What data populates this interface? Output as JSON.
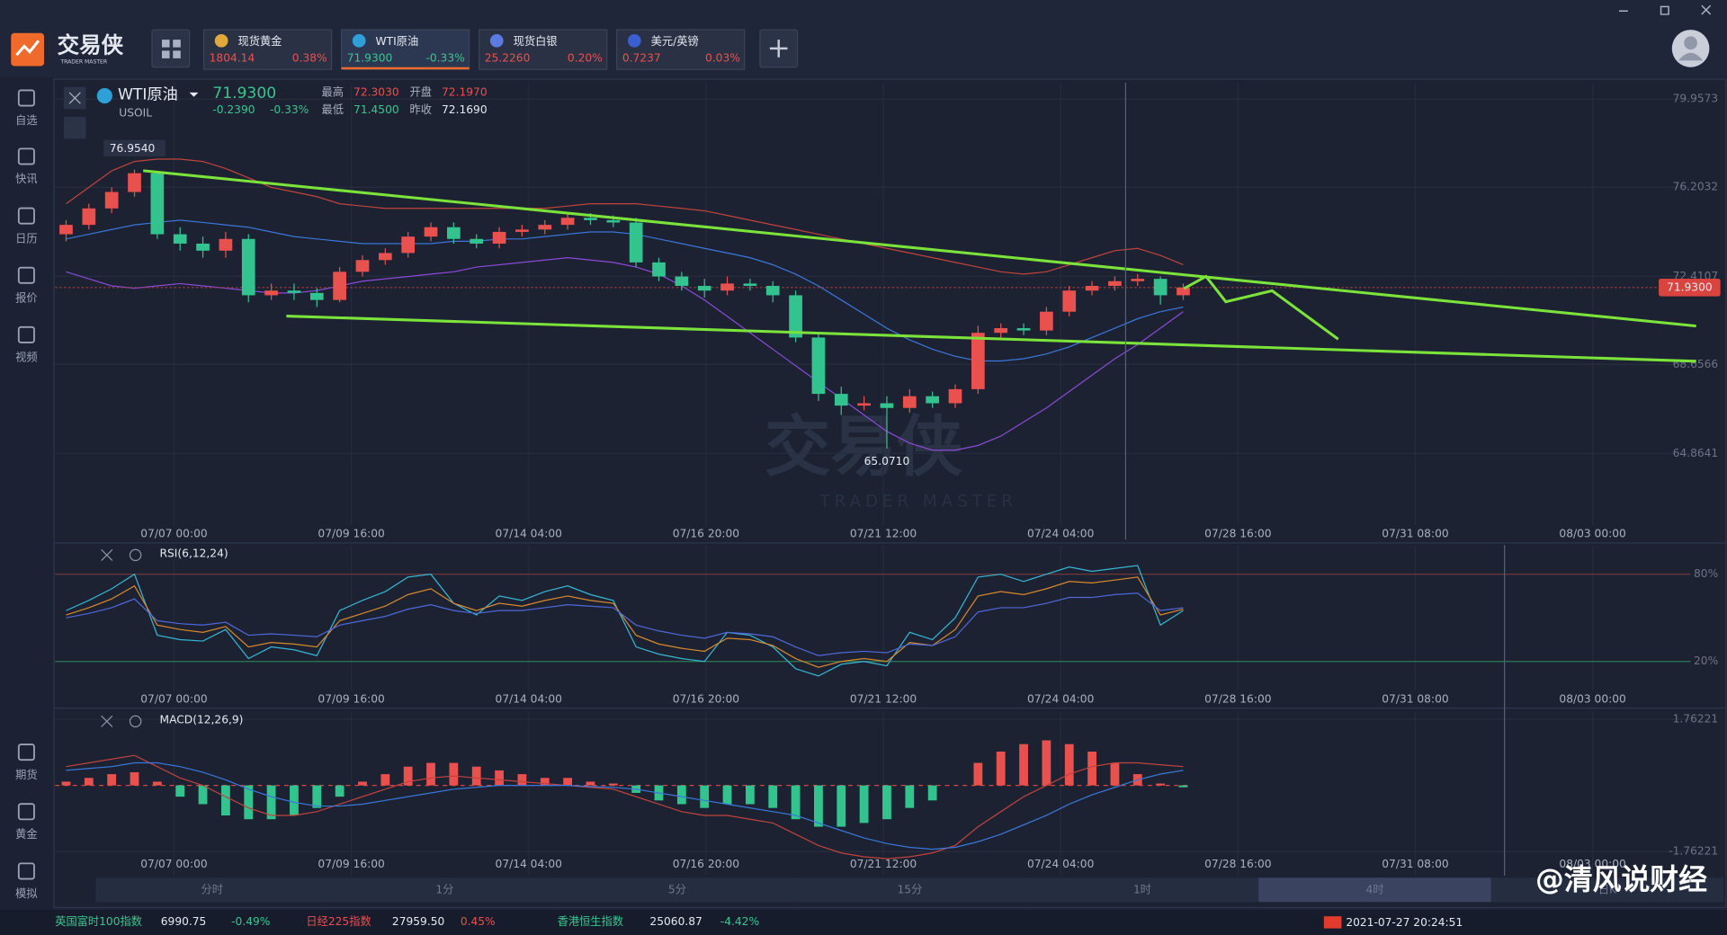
{
  "header": {
    "logo": "交易侠",
    "logo_sub": "TRADER MASTER",
    "tickers": [
      {
        "name": "现货黄金",
        "price": "1804.14",
        "change": "0.38%"
      },
      {
        "name": "WTI原油",
        "price": "71.9300",
        "change": "-0.33%"
      },
      {
        "name": "现货白银",
        "price": "25.2260",
        "change": "0.20%"
      },
      {
        "name": "美元/英镑",
        "price": "0.7237",
        "change": "0.03%"
      }
    ]
  },
  "sidebar": [
    "自选",
    "快讯",
    "日历",
    "报价",
    "视频",
    "期货",
    "黄金",
    "模拟"
  ],
  "symbol": {
    "name": "WTI原油",
    "code": "USOIL",
    "price": "71.9300",
    "change": "-0.2390",
    "change_pct": "-0.33%",
    "high_label": "最高",
    "high": "72.3030",
    "open_label": "开盘",
    "open": "72.1970",
    "low_label": "最低",
    "low": "71.4500",
    "prev_label": "昨收",
    "prev": "72.1690"
  },
  "chart_data": [
    {
      "type": "candlestick",
      "colors": {
        "up": "#e9514f",
        "down": "#32c38f"
      },
      "open": [
        74.2,
        74.6,
        75.3,
        76.0,
        76.8,
        74.2,
        73.8,
        73.5,
        74.0,
        71.6,
        71.8,
        71.7,
        71.4,
        72.6,
        73.1,
        73.4,
        74.1,
        74.5,
        74.0,
        73.8,
        74.3,
        74.4,
        74.6,
        74.9,
        74.8,
        74.7,
        73.0,
        72.4,
        72.0,
        71.8,
        72.1,
        72.0,
        71.6,
        69.8,
        67.4,
        66.9,
        67.0,
        66.8,
        67.3,
        67.0,
        67.6,
        70.0,
        70.2,
        70.1,
        70.9,
        71.8,
        72.0,
        72.2,
        72.3,
        71.6
      ],
      "high": [
        74.8,
        75.5,
        76.2,
        76.954,
        76.9,
        74.5,
        74.1,
        74.3,
        74.2,
        72.1,
        72.1,
        71.9,
        72.8,
        73.3,
        73.6,
        74.3,
        74.7,
        74.7,
        74.2,
        74.5,
        74.6,
        74.8,
        75.1,
        75.1,
        75.0,
        74.9,
        73.2,
        72.6,
        72.3,
        72.4,
        72.3,
        72.2,
        71.8,
        70.0,
        67.7,
        67.3,
        67.3,
        67.6,
        67.5,
        67.8,
        70.3,
        70.4,
        70.4,
        71.1,
        72.0,
        72.2,
        72.4,
        72.5,
        72.4,
        72.1
      ],
      "low": [
        73.9,
        74.4,
        75.1,
        75.8,
        74.0,
        73.5,
        73.2,
        73.2,
        71.3,
        71.4,
        71.4,
        71.1,
        71.3,
        72.4,
        72.9,
        73.2,
        73.9,
        73.8,
        73.6,
        73.6,
        74.1,
        74.2,
        74.4,
        74.6,
        74.5,
        72.8,
        72.2,
        71.8,
        71.5,
        71.6,
        71.8,
        71.3,
        69.6,
        67.1,
        66.5,
        66.7,
        65.071,
        66.6,
        66.8,
        66.8,
        67.4,
        69.8,
        69.9,
        69.9,
        70.7,
        71.6,
        71.8,
        72.0,
        71.2,
        71.4
      ],
      "close": [
        74.6,
        75.3,
        76.0,
        76.8,
        74.2,
        73.8,
        73.5,
        74.0,
        71.6,
        71.8,
        71.7,
        71.4,
        72.6,
        73.1,
        73.4,
        74.1,
        74.5,
        74.0,
        73.8,
        74.3,
        74.4,
        74.6,
        74.9,
        74.8,
        74.7,
        73.0,
        72.4,
        72.0,
        71.8,
        72.1,
        72.0,
        71.6,
        69.8,
        67.4,
        66.9,
        67.0,
        66.8,
        67.3,
        67.0,
        67.6,
        70.0,
        70.2,
        70.1,
        70.9,
        71.8,
        72.0,
        72.2,
        72.3,
        71.6,
        71.93
      ],
      "series": [
        {
          "color": "#c0433d",
          "values": [
            75.5,
            76.2,
            76.9,
            77.3,
            77.4,
            77.4,
            77.3,
            77.0,
            76.6,
            76.2,
            76.0,
            75.8,
            75.5,
            75.4,
            75.3,
            75.3,
            75.3,
            75.3,
            75.3,
            75.3,
            75.3,
            75.3,
            75.4,
            75.5,
            75.5,
            75.5,
            75.4,
            75.3,
            75.2,
            75.0,
            74.8,
            74.6,
            74.4,
            74.2,
            74.0,
            73.8,
            73.6,
            73.4,
            73.2,
            73.0,
            72.8,
            72.6,
            72.5,
            72.6,
            72.9,
            73.2,
            73.5,
            73.6,
            73.3,
            72.9
          ]
        },
        {
          "color": "#3a77d9",
          "values": [
            74.0,
            74.2,
            74.4,
            74.6,
            74.7,
            74.8,
            74.7,
            74.6,
            74.5,
            74.3,
            74.1,
            74.0,
            73.9,
            73.8,
            73.8,
            73.8,
            73.8,
            73.9,
            73.9,
            74.0,
            74.0,
            74.1,
            74.2,
            74.3,
            74.3,
            74.2,
            74.0,
            73.8,
            73.6,
            73.4,
            73.2,
            72.9,
            72.5,
            72.0,
            71.4,
            70.8,
            70.2,
            69.7,
            69.3,
            69.0,
            68.8,
            68.8,
            68.9,
            69.1,
            69.4,
            69.8,
            70.2,
            70.6,
            70.9,
            71.1
          ]
        },
        {
          "color": "#8a4ad6",
          "values": [
            72.6,
            72.3,
            72.0,
            71.9,
            72.0,
            72.1,
            72.0,
            71.9,
            71.8,
            71.7,
            71.7,
            71.8,
            72.0,
            72.2,
            72.3,
            72.4,
            72.5,
            72.6,
            72.8,
            72.9,
            73.0,
            73.1,
            73.2,
            73.1,
            73.0,
            72.8,
            72.5,
            72.0,
            71.4,
            70.7,
            70.0,
            69.3,
            68.6,
            67.9,
            67.2,
            66.5,
            65.8,
            65.3,
            65.0,
            65.0,
            65.2,
            65.6,
            66.2,
            66.8,
            67.5,
            68.2,
            68.9,
            69.5,
            70.2,
            70.9
          ]
        }
      ],
      "ylim": [
        61.8,
        80.66
      ],
      "yticks": [
        79.9573,
        76.2032,
        72.4107,
        68.6566,
        64.8641
      ],
      "last_price": {
        "value": 71.93,
        "label": "71.9300"
      },
      "max_label": "76.9540",
      "min_label": "65.0710",
      "time_labels": [
        "07/07 00:00",
        "07/09 16:00",
        "07/14 04:00",
        "07/16 20:00",
        "07/21 12:00",
        "07/24 04:00",
        "07/28 16:00",
        "07/31 08:00",
        "08/03 00:00"
      ]
    },
    {
      "type": "line",
      "title": "RSI(6,12,24)",
      "series": [
        {
          "color": "#36b6d4",
          "values": [
            55,
            62,
            70,
            80,
            38,
            35,
            34,
            42,
            22,
            30,
            28,
            24,
            55,
            62,
            68,
            78,
            80,
            60,
            52,
            65,
            62,
            68,
            72,
            66,
            62,
            30,
            25,
            22,
            20,
            40,
            38,
            30,
            15,
            10,
            18,
            20,
            17,
            40,
            35,
            50,
            78,
            80,
            75,
            80,
            85,
            82,
            84,
            86,
            45,
            55
          ]
        },
        {
          "color": "#d8882c",
          "values": [
            52,
            57,
            63,
            72,
            45,
            42,
            40,
            44,
            30,
            33,
            32,
            30,
            48,
            53,
            58,
            66,
            70,
            60,
            55,
            60,
            58,
            62,
            65,
            62,
            60,
            38,
            32,
            29,
            27,
            36,
            35,
            31,
            22,
            16,
            20,
            22,
            20,
            33,
            31,
            42,
            65,
            68,
            66,
            70,
            75,
            74,
            76,
            78,
            52,
            56
          ]
        },
        {
          "color": "#4f68d8",
          "values": [
            50,
            53,
            57,
            63,
            48,
            46,
            45,
            47,
            38,
            39,
            38,
            37,
            45,
            48,
            51,
            56,
            59,
            55,
            53,
            55,
            55,
            57,
            59,
            58,
            57,
            45,
            41,
            38,
            36,
            40,
            39,
            37,
            30,
            24,
            26,
            27,
            26,
            32,
            31,
            37,
            54,
            57,
            57,
            60,
            64,
            64,
            66,
            67,
            55,
            57
          ]
        }
      ],
      "ylim": [
        0,
        100
      ],
      "yticks": [
        {
          "value": 80,
          "label": "80%"
        },
        {
          "value": 20,
          "label": "20%"
        }
      ]
    },
    {
      "type": "macd",
      "title": "MACD(12,26,9)",
      "colors": {
        "up": "#e9514f",
        "down": "#32c38f"
      },
      "histogram": [
        0.1,
        0.2,
        0.3,
        0.35,
        0.1,
        -0.3,
        -0.5,
        -0.8,
        -0.9,
        -0.9,
        -0.8,
        -0.6,
        -0.3,
        0.1,
        0.3,
        0.5,
        0.6,
        0.6,
        0.5,
        0.4,
        0.3,
        0.2,
        0.2,
        0.1,
        0.05,
        -0.2,
        -0.4,
        -0.5,
        -0.6,
        -0.5,
        -0.5,
        -0.6,
        -0.9,
        -1.1,
        -1.1,
        -1.0,
        -0.9,
        -0.6,
        -0.4,
        0.0,
        0.6,
        0.9,
        1.1,
        1.2,
        1.1,
        0.9,
        0.6,
        0.3,
        0.05,
        -0.05
      ],
      "series": [
        {
          "color": "#c0433d",
          "values": [
            0.5,
            0.6,
            0.7,
            0.8,
            0.5,
            0.2,
            0.0,
            -0.3,
            -0.6,
            -0.8,
            -0.8,
            -0.7,
            -0.5,
            -0.3,
            -0.1,
            0.1,
            0.2,
            0.25,
            0.2,
            0.15,
            0.1,
            0.05,
            0.0,
            -0.05,
            -0.1,
            -0.3,
            -0.5,
            -0.7,
            -0.8,
            -0.8,
            -0.9,
            -1.0,
            -1.3,
            -1.6,
            -1.8,
            -1.9,
            -1.95,
            -1.9,
            -1.8,
            -1.6,
            -1.1,
            -0.7,
            -0.3,
            0.0,
            0.3,
            0.5,
            0.6,
            0.6,
            0.55,
            0.5
          ]
        },
        {
          "color": "#3a77d9",
          "values": [
            0.4,
            0.45,
            0.5,
            0.6,
            0.6,
            0.5,
            0.35,
            0.15,
            -0.1,
            -0.3,
            -0.45,
            -0.55,
            -0.55,
            -0.5,
            -0.4,
            -0.3,
            -0.2,
            -0.1,
            -0.05,
            0.0,
            0.0,
            0.0,
            0.0,
            -0.03,
            -0.05,
            -0.1,
            -0.2,
            -0.3,
            -0.4,
            -0.5,
            -0.6,
            -0.7,
            -0.8,
            -1.0,
            -1.2,
            -1.4,
            -1.55,
            -1.65,
            -1.7,
            -1.65,
            -1.5,
            -1.3,
            -1.05,
            -0.8,
            -0.5,
            -0.25,
            -0.05,
            0.15,
            0.3,
            0.4
          ]
        }
      ],
      "ylim": [
        -2.4,
        1.97
      ],
      "yticks": [
        1.76221,
        -1.76221
      ]
    }
  ],
  "timeframes": [
    "分时",
    "1分",
    "5分",
    "15分",
    "1时",
    "4时",
    "日K"
  ],
  "active_timeframe": "4时",
  "footer": {
    "indices": [
      {
        "name": "英国富时100指数",
        "value": "6990.75",
        "change": "-0.49%"
      },
      {
        "name": "日经225指数",
        "value": "27959.50",
        "change": "0.45%"
      },
      {
        "name": "香港恒生指数",
        "value": "25060.87",
        "change": "-4.42%"
      }
    ],
    "datetime": "2021-07-27 20:24:51"
  },
  "watermark": "@清风说财经"
}
